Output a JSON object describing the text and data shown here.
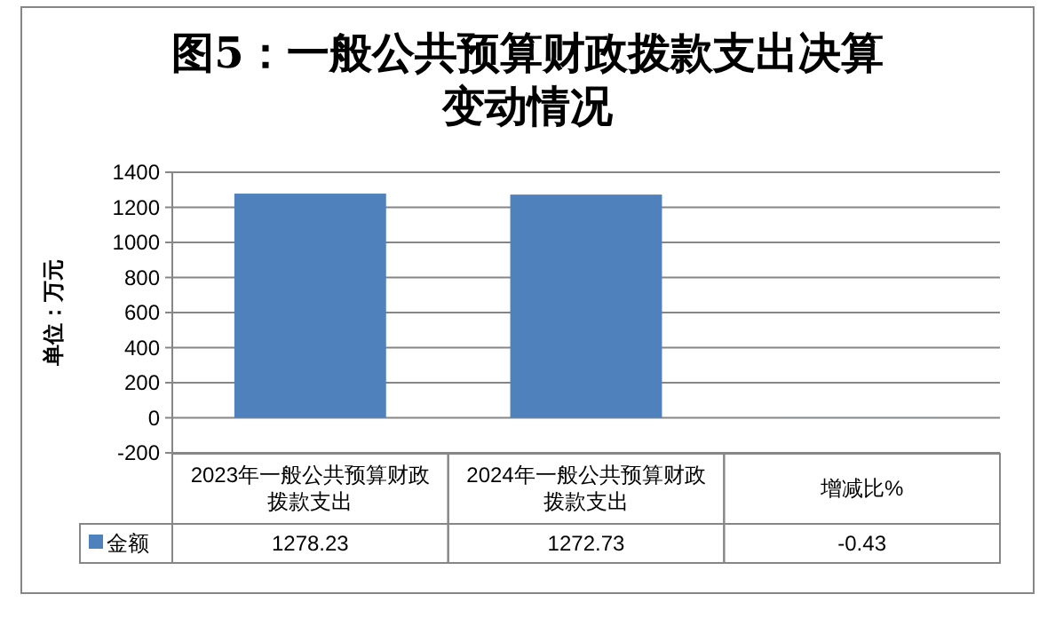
{
  "chart_data": {
    "type": "bar",
    "title": "图5：一般公共预算财政拨款支出决算变动情况",
    "ylabel": "单位：万元",
    "categories": [
      "2023年一般公共预算财政拨款支出",
      "2024年一般公共预算财政拨款支出",
      "增减比%"
    ],
    "series": [
      {
        "name": "金额",
        "color": "#4f81bd",
        "values": [
          1278.23,
          1272.73,
          -0.43
        ]
      }
    ],
    "ylim": [
      -200,
      1400
    ],
    "yticks": [
      -200,
      0,
      200,
      400,
      600,
      800,
      1000,
      1200,
      1400
    ],
    "grid": "y",
    "data_labels": true,
    "legend": "bottom left"
  }
}
